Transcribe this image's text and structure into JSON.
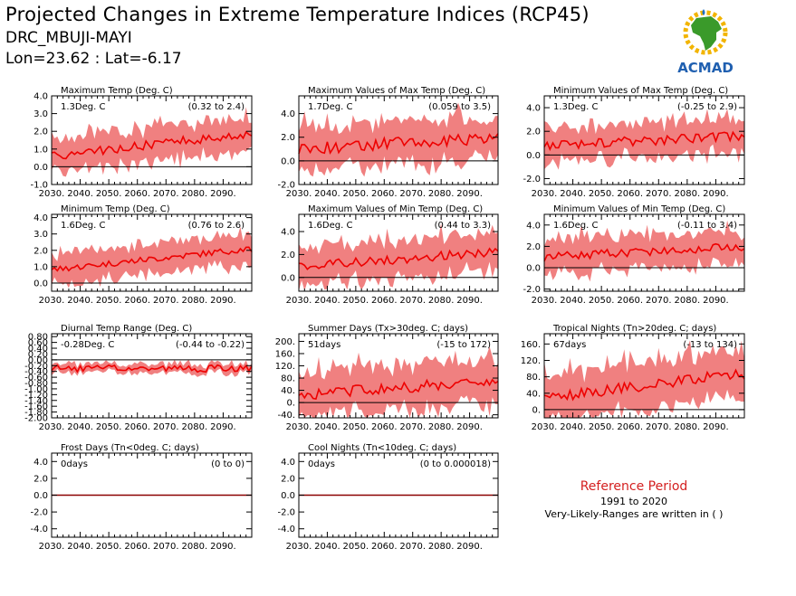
{
  "header": {
    "title": "Projected Changes in Extreme Temperature Indices (RCP45)",
    "location": "DRC_MBUJI-MAYI",
    "coords": "Lon=23.62 : Lat=-6.17"
  },
  "logo": {
    "text": "ACMAD",
    "icon": "africa-logo-icon"
  },
  "reference": {
    "title": "Reference Period",
    "period": "1991 to 2020",
    "note": "Very-Likely-Ranges are written in ( )"
  },
  "colors": {
    "band": "#f08080",
    "line": "#ee0000",
    "zero": "#000000",
    "frost_line": "#8b0000",
    "ref_title": "#d42020"
  },
  "xticks": [
    "2030.",
    "2040.",
    "2050.",
    "2060.",
    "2070.",
    "2080.",
    "2090."
  ],
  "chart_data": [
    {
      "type": "area",
      "title": "Maximum Temp (Deg. C)",
      "mean_label": "1.3Deg. C",
      "range_label": "(0.32 to 2.4)",
      "yticks": [
        "4.0",
        "3.0",
        "2.0",
        "1.0",
        "0.0",
        "-1.0"
      ],
      "ylim": [
        -1.0,
        4.0
      ],
      "x": [
        2030,
        2100
      ],
      "trend_start": 0.6,
      "trend_end": 1.9,
      "band_half_width": 0.95,
      "noise": 0.25
    },
    {
      "type": "area",
      "title": "Maximum Values of Max Temp (Deg. C)",
      "mean_label": "1.7Deg. C",
      "range_label": "(0.059 to 3.5)",
      "yticks": [
        "4.0",
        "2.0",
        "0.0",
        "-2.0"
      ],
      "ylim": [
        -2.0,
        5.5
      ],
      "x": [
        2030,
        2100
      ],
      "trend_start": 1.0,
      "trend_end": 2.0,
      "band_half_width": 1.8,
      "noise": 0.5
    },
    {
      "type": "area",
      "title": "Minimum Values of Max Temp (Deg. C)",
      "mean_label": "1.3Deg. C",
      "range_label": "(-0.25 to 2.9)",
      "yticks": [
        "4.0",
        "2.0",
        "0.0",
        "-2.0"
      ],
      "ylim": [
        -2.5,
        5.0
      ],
      "x": [
        2030,
        2100
      ],
      "trend_start": 0.8,
      "trend_end": 1.6,
      "band_half_width": 1.5,
      "noise": 0.4
    },
    {
      "type": "area",
      "title": "Minimum Temp (Deg. C)",
      "mean_label": "1.6Deg. C",
      "range_label": "(0.76 to 2.6)",
      "yticks": [
        "4.0",
        "3.0",
        "2.0",
        "1.0",
        "0.0"
      ],
      "ylim": [
        -0.5,
        4.2
      ],
      "x": [
        2030,
        2100
      ],
      "trend_start": 0.8,
      "trend_end": 2.1,
      "band_half_width": 0.9,
      "noise": 0.2
    },
    {
      "type": "area",
      "title": "Maximum Values of Min Temp (Deg. C)",
      "mean_label": "1.6Deg. C",
      "range_label": "(0.44 to 3.3)",
      "yticks": [
        "4.0",
        "2.0",
        "0.0"
      ],
      "ylim": [
        -1.2,
        5.5
      ],
      "x": [
        2030,
        2100
      ],
      "trend_start": 1.0,
      "trend_end": 2.2,
      "band_half_width": 1.6,
      "noise": 0.4
    },
    {
      "type": "area",
      "title": "Minimum Values of Min Temp (Deg. C)",
      "mean_label": "1.6Deg. C",
      "range_label": "(-0.11 to 3.4)",
      "yticks": [
        "4.0",
        "2.0",
        "0.0",
        "-2.0"
      ],
      "ylim": [
        -2.2,
        5.0
      ],
      "x": [
        2030,
        2100
      ],
      "trend_start": 1.0,
      "trend_end": 2.0,
      "band_half_width": 1.6,
      "noise": 0.4
    },
    {
      "type": "area",
      "title": "Diurnal Temp Range (Deg. C)",
      "mean_label": "-0.28Deg. C",
      "range_label": "(-0.44 to -0.22)",
      "yticks": [
        "0.80",
        "0.60",
        "0.40",
        "0.20",
        "0.00",
        "-0.20",
        "-0.40",
        "-0.60",
        "-0.80",
        "-1.00",
        "-1.20",
        "-1.40",
        "-1.60",
        "-1.80",
        "-2.00"
      ],
      "ylim": [
        -2.0,
        0.9
      ],
      "x": [
        2030,
        2100
      ],
      "trend_start": -0.3,
      "trend_end": -0.3,
      "band_half_width": 0.15,
      "noise": 0.12
    },
    {
      "type": "area",
      "title": "Summer Days (Tx>30deg. C; days)",
      "mean_label": "51days",
      "range_label": "(-15 to 172)",
      "yticks": [
        "200.",
        "160.",
        "120.",
        "80.",
        "40.",
        "0.",
        "-40."
      ],
      "ylim": [
        -50,
        225
      ],
      "x": [
        2030,
        2100
      ],
      "trend_start": 25,
      "trend_end": 72,
      "band_half_width": 75,
      "noise": 18
    },
    {
      "type": "area",
      "title": "Tropical Nights (Tn>20deg. C; days)",
      "mean_label": "67days",
      "range_label": "(-13 to 134)",
      "yticks": [
        "160.",
        "120.",
        "80.",
        "40.",
        "0."
      ],
      "ylim": [
        -20,
        185
      ],
      "x": [
        2030,
        2100
      ],
      "trend_start": 30,
      "trend_end": 88,
      "band_half_width": 55,
      "noise": 14
    },
    {
      "type": "line",
      "title": "Frost Days (Tn<0deg. C; days)",
      "mean_label": "0days",
      "range_label": "(0 to 0)",
      "yticks": [
        "4.0",
        "2.0",
        "0.0",
        "-2.0",
        "-4.0"
      ],
      "ylim": [
        -5.0,
        5.0
      ],
      "x": [
        2030,
        2100
      ],
      "trend_start": 0,
      "trend_end": 0,
      "band_half_width": 0,
      "noise": 0
    },
    {
      "type": "line",
      "title": "Cool Nights (Tn<10deg. C; days)",
      "mean_label": "0days",
      "range_label": "(0 to 0.000018)",
      "yticks": [
        "4.0",
        "2.0",
        "0.0",
        "-2.0",
        "-4.0"
      ],
      "ylim": [
        -5.0,
        5.0
      ],
      "x": [
        2030,
        2100
      ],
      "trend_start": 0,
      "trend_end": 0,
      "band_half_width": 0,
      "noise": 0
    }
  ]
}
